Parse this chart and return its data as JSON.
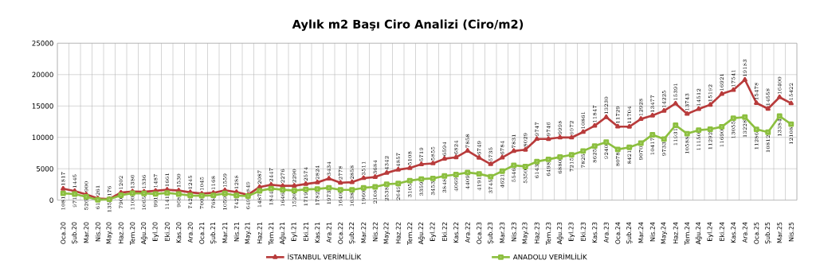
{
  "chart_data": {
    "type": "line",
    "title": "Aylık m2 Başı Ciro Analizi (Ciro/m2)",
    "categories": [
      "Oca.20",
      "Şub.20",
      "Mar.20",
      "Nis.20",
      "May.20",
      "Haz.20",
      "Tem.20",
      "Ağu.20",
      "Eyl.20",
      "Eki.20",
      "Kas.20",
      "Ara.20",
      "Oca.21",
      "Şub.21",
      "Mar.21",
      "Nis.21",
      "May.21",
      "Haz.21",
      "Tem.21",
      "Ağu.21",
      "Eyl.21",
      "Eki.21",
      "Kas.21",
      "Ara.21",
      "Oca.22",
      "Şub.22",
      "Mar.22",
      "Nis.22",
      "May.22",
      "Haz.22",
      "Tem.22",
      "Ağu.22",
      "Eyl.22",
      "Eki.22",
      "Kas.22",
      "Ara.22",
      "Oca.23",
      "Şub.23",
      "Mar.23",
      "Nis.23",
      "May.23",
      "Haz.23",
      "Tem.23",
      "Ağu.23",
      "Eyl.23",
      "Eki.23",
      "Kas.23",
      "Ara.23",
      "Oca.24",
      "Şub.24",
      "Mar.24",
      "Nis.24",
      "May.24",
      "Haz.24",
      "Tem.24",
      "Ağu.24",
      "Eyl.24",
      "Eki.24",
      "Kas.24",
      "Ara.24",
      "Oca.25",
      "Şub.25",
      "Mar.25",
      "Nis.25"
    ],
    "series": [
      {
        "name": "İSTANBUL VERİMLİLİK",
        "color": "#b83b3b",
        "marker": "triangle",
        "values": [
          1817,
          1445,
          900,
          261,
          176,
          1202,
          1380,
          1336,
          1487,
          1661,
          1530,
          1245,
          1045,
          1168,
          1559,
          1288,
          849,
          2087,
          2447,
          2276,
          2290,
          2574,
          2824,
          3434,
          2778,
          2858,
          3511,
          3684,
          4342,
          4857,
          5108,
          5719,
          5855,
          6594,
          6824,
          7858,
          6749,
          5735,
          6784,
          7831,
          8029,
          9747,
          9746,
          9998,
          9972,
          10861,
          11847,
          13230,
          11729,
          11704,
          12928,
          13477,
          14225,
          15391,
          13743,
          14512,
          15192,
          16921,
          17541,
          19183,
          15478,
          14558,
          16400,
          15422
        ]
      },
      {
        "name": "ANADOLU VERİMLİLİK",
        "color": "#8cbf3f",
        "marker": "square",
        "values": [
          1081,
          971,
          526,
          61,
          135,
          790,
          1100,
          1065,
          991,
          1141,
          968,
          742,
          700,
          768,
          1059,
          742,
          649,
          1487,
          1844,
          1646,
          1520,
          1719,
          1782,
          1973,
          1640,
          1638,
          1960,
          2108,
          2538,
          2649,
          3105,
          3359,
          3453,
          3848,
          4069,
          4409,
          4191,
          3745,
          4621,
          5546,
          5350,
          6143,
          6498,
          6880,
          7215,
          7825,
          8625,
          9240,
          8078,
          8421,
          9070,
          10417,
          9733,
          11931,
          10588,
          11150,
          11292,
          11690,
          13055,
          13228,
          11286,
          10812,
          13384,
          12108
        ]
      }
    ],
    "ylim": [
      0,
      25000
    ],
    "yticks": [
      0,
      5000,
      10000,
      15000,
      20000,
      25000
    ],
    "grid": true,
    "legend": "bottom",
    "data_labels": true,
    "line_style": "solid"
  }
}
